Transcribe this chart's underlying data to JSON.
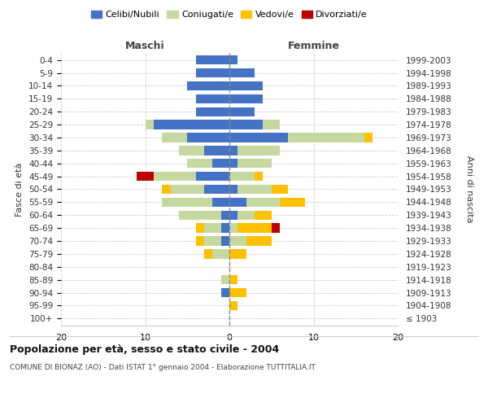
{
  "age_groups": [
    "100+",
    "95-99",
    "90-94",
    "85-89",
    "80-84",
    "75-79",
    "70-74",
    "65-69",
    "60-64",
    "55-59",
    "50-54",
    "45-49",
    "40-44",
    "35-39",
    "30-34",
    "25-29",
    "20-24",
    "15-19",
    "10-14",
    "5-9",
    "0-4"
  ],
  "birth_years": [
    "≤ 1903",
    "1904-1908",
    "1909-1913",
    "1914-1918",
    "1919-1923",
    "1924-1928",
    "1929-1933",
    "1934-1938",
    "1939-1943",
    "1944-1948",
    "1949-1953",
    "1954-1958",
    "1959-1963",
    "1964-1968",
    "1969-1973",
    "1974-1978",
    "1979-1983",
    "1984-1988",
    "1989-1993",
    "1994-1998",
    "1999-2003"
  ],
  "maschi_celibi": [
    0,
    0,
    1,
    0,
    0,
    0,
    1,
    1,
    1,
    2,
    3,
    4,
    2,
    3,
    5,
    9,
    4,
    4,
    5,
    4,
    4
  ],
  "maschi_coniugati": [
    0,
    0,
    0,
    1,
    0,
    2,
    2,
    2,
    5,
    6,
    4,
    5,
    3,
    3,
    3,
    1,
    0,
    0,
    0,
    0,
    0
  ],
  "maschi_vedovi": [
    0,
    0,
    0,
    0,
    0,
    1,
    1,
    1,
    0,
    0,
    1,
    0,
    0,
    0,
    0,
    0,
    0,
    0,
    0,
    0,
    0
  ],
  "maschi_divorziati": [
    0,
    0,
    0,
    0,
    0,
    0,
    0,
    0,
    0,
    0,
    0,
    2,
    0,
    0,
    0,
    0,
    0,
    0,
    0,
    0,
    0
  ],
  "femmine_nubili": [
    0,
    0,
    0,
    0,
    0,
    0,
    0,
    0,
    1,
    2,
    1,
    0,
    1,
    1,
    7,
    4,
    3,
    4,
    4,
    3,
    1
  ],
  "femmine_coniugate": [
    0,
    0,
    0,
    0,
    0,
    0,
    2,
    1,
    2,
    4,
    4,
    3,
    4,
    5,
    9,
    2,
    0,
    0,
    0,
    0,
    0
  ],
  "femmine_vedove": [
    0,
    1,
    2,
    1,
    0,
    2,
    3,
    4,
    2,
    3,
    2,
    1,
    0,
    0,
    1,
    0,
    0,
    0,
    0,
    0,
    0
  ],
  "femmine_divorziate": [
    0,
    0,
    0,
    0,
    0,
    0,
    0,
    1,
    0,
    0,
    0,
    0,
    0,
    0,
    0,
    0,
    0,
    0,
    0,
    0,
    0
  ],
  "color_celibi": "#4472c4",
  "color_coniugati": "#c5d8a0",
  "color_vedovi": "#ffc000",
  "color_divorziati": "#c00000",
  "legend_labels": [
    "Celibi/Nubili",
    "Coniugati/e",
    "Vedovi/e",
    "Divorziati/e"
  ],
  "title": "Popolazione per età, sesso e stato civile - 2004",
  "subtitle": "COMUNE DI BIONAZ (AO) - Dati ISTAT 1° gennaio 2004 - Elaborazione TUTTITALIA.IT",
  "ylabel_left": "Fasce di età",
  "ylabel_right": "Anni di nascita",
  "header_maschi": "Maschi",
  "header_femmine": "Femmine",
  "xlim": 20,
  "bg_color": "#ffffff",
  "grid_color": "#cccccc",
  "bar_height": 0.72
}
